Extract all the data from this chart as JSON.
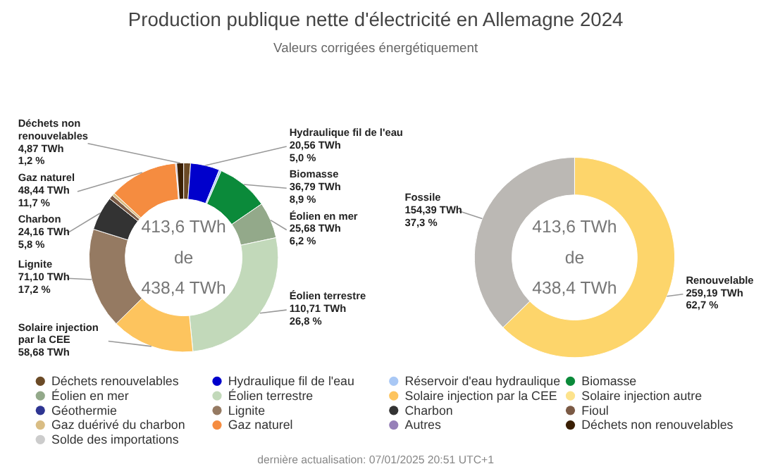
{
  "chart_data": [
    {
      "type": "donut",
      "title": "Production publique nette d'électricité en Allemagne 2024",
      "subtitle": "Valeurs corrigées énergétiquement",
      "categories": [
        "Déchets renouvelables",
        "Hydraulique fil de l'eau",
        "Réservoir d'eau hydraulique",
        "Biomasse",
        "Éolien en mer",
        "Éolien terrestre",
        "Solaire injection par la CEE",
        "Solaire injection autre",
        "Géothermie",
        "Lignite",
        "Charbon",
        "Fioul",
        "Gaz duérivé du charbon",
        "Gaz naturel",
        "Autres",
        "Déchets non renouvelables",
        "Solde des importations"
      ],
      "values": [
        4.87,
        20.56,
        1.5,
        36.79,
        25.68,
        110.71,
        58.68,
        null,
        null,
        71.1,
        24.16,
        3.0,
        2.0,
        48.44,
        0.82,
        4.87,
        null
      ],
      "colors": [
        "#6b4a26",
        "#0000cc",
        "#a9c8f5",
        "#0b8a3a",
        "#93a98a",
        "#c2d9ba",
        "#fdc45e",
        "#fde38c",
        "#2e3592",
        "#957a62",
        "#333333",
        "#7b5a45",
        "#d9bd84",
        "#f58c40",
        "#9680b8",
        "#3a1f04",
        "#cccccc"
      ],
      "value_labels": [
        null,
        "20,56 TWh\n5,0 %",
        null,
        "36,79 TWh\n8,9 %",
        "25,68 TWh\n6,2 %",
        "110,71 TWh\n26,8 %",
        "58,68 TWh",
        null,
        null,
        "71,10 TWh\n17,2 %",
        "24,16 TWh\n5,8 %",
        null,
        null,
        "48,44 TWh\n11,7 %",
        null,
        "4,87 TWh\n1,2 %",
        null
      ],
      "legend": "bottom",
      "annotations": [
        "413,6 TWh\nde\n438,4 TWh",
        "dernière actualisation: 07/01/2025 20:51 UTC+1"
      ]
    },
    {
      "type": "donut",
      "categories": [
        "Renouvelable",
        "Fossile"
      ],
      "values": [
        259.19,
        154.39
      ],
      "colors": [
        "#fdd56b",
        "#bbb8b4"
      ],
      "value_labels": [
        "259,19 TWh\n62,7 %",
        "154,39 TWh\n37,3 %"
      ],
      "annotations": [
        "413,6 TWh\nde\n438,4 TWh"
      ]
    }
  ]
}
